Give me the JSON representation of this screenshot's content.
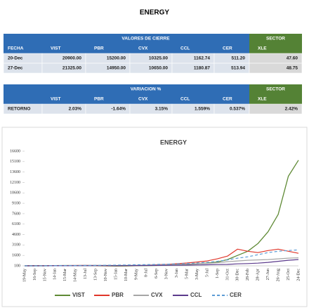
{
  "title": "ENERGY",
  "closing_table": {
    "group_header": "VALORES DE CIERRE",
    "sector_header": "SECTOR",
    "columns": [
      "FECHA",
      "VIST",
      "PBR",
      "CVX",
      "CCL",
      "CER",
      "XLE"
    ],
    "rows": [
      [
        "20-Dec",
        "20900.00",
        "15200.00",
        "10325.00",
        "1162.74",
        "511.20",
        "47.60"
      ],
      [
        "27-Dec",
        "21325.00",
        "14950.00",
        "10650.00",
        "1180.87",
        "513.94",
        "48.75"
      ]
    ]
  },
  "return_table": {
    "group_header": "VARIACION %",
    "sector_header": "SECTOR",
    "columns": [
      null,
      "VIST",
      "PBR",
      "CVX",
      "CCL",
      "CER",
      "XLE"
    ],
    "rows": [
      [
        "RETORNO",
        "2.03%",
        "-1.64%",
        "3.15%",
        "1.559%",
        "0.537%",
        "2.42%"
      ]
    ]
  },
  "chart_data": {
    "type": "line",
    "title": "ENERGY",
    "categories": [
      "19-May",
      "16-Sep",
      "15-Nov",
      "14-Jan",
      "15-Mar",
      "14-May",
      "13-Jul",
      "13-Sep",
      "10-Nov",
      "15-Jan",
      "10-Mar",
      "9-May",
      "8-Jul",
      "6-Sep",
      "3-Nov",
      "3-Jan",
      "5-Mar",
      "3-May",
      "5-Jul",
      "1-Sep",
      "31-Oct",
      "30-Dec",
      "28-Feb",
      "28-Apr",
      "27-Jun",
      "26-Aug",
      "25-Oct",
      "24-Dec"
    ],
    "series": [
      {
        "name": "VIST",
        "color": "#5f8a35",
        "dashed": false,
        "values": [
          100,
          120,
          100,
          130,
          150,
          140,
          130,
          120,
          90,
          60,
          80,
          110,
          130,
          150,
          180,
          230,
          300,
          380,
          500,
          650,
          1000,
          1600,
          2200,
          3300,
          5000,
          7500,
          13000,
          15300
        ]
      },
      {
        "name": "PBR",
        "color": "#e0362a",
        "dashed": false,
        "values": [
          100,
          110,
          120,
          130,
          140,
          150,
          160,
          150,
          120,
          110,
          130,
          150,
          180,
          250,
          300,
          400,
          500,
          650,
          800,
          1100,
          1500,
          2500,
          2200,
          2000,
          2300,
          2500,
          2200,
          1900
        ]
      },
      {
        "name": "CVX",
        "color": "#a6a6a6",
        "dashed": false,
        "values": [
          100,
          110,
          120,
          130,
          140,
          150,
          160,
          170,
          160,
          150,
          170,
          180,
          200,
          220,
          250,
          300,
          330,
          400,
          450,
          550,
          700,
          800,
          900,
          950,
          1000,
          1100,
          1200,
          1250
        ]
      },
      {
        "name": "CCL",
        "color": "#5b3a8c",
        "dashed": false,
        "values": [
          100,
          100,
          100,
          110,
          110,
          120,
          120,
          130,
          130,
          120,
          130,
          140,
          150,
          160,
          170,
          180,
          200,
          220,
          250,
          280,
          300,
          380,
          420,
          480,
          600,
          750,
          900,
          1000
        ]
      },
      {
        "name": "CER",
        "color": "#5b9bd5",
        "dashed": true,
        "values": [
          100,
          100,
          110,
          120,
          130,
          140,
          150,
          160,
          180,
          200,
          220,
          250,
          270,
          300,
          330,
          380,
          430,
          500,
          600,
          750,
          950,
          1200,
          1400,
          1700,
          2000,
          2200,
          2300,
          2400
        ]
      }
    ],
    "ylim": [
      100,
      16600
    ],
    "yticks": [
      100,
      1600,
      3100,
      4600,
      6100,
      7600,
      9100,
      10600,
      12100,
      13600,
      15100,
      16600
    ],
    "legend": "bottom"
  }
}
